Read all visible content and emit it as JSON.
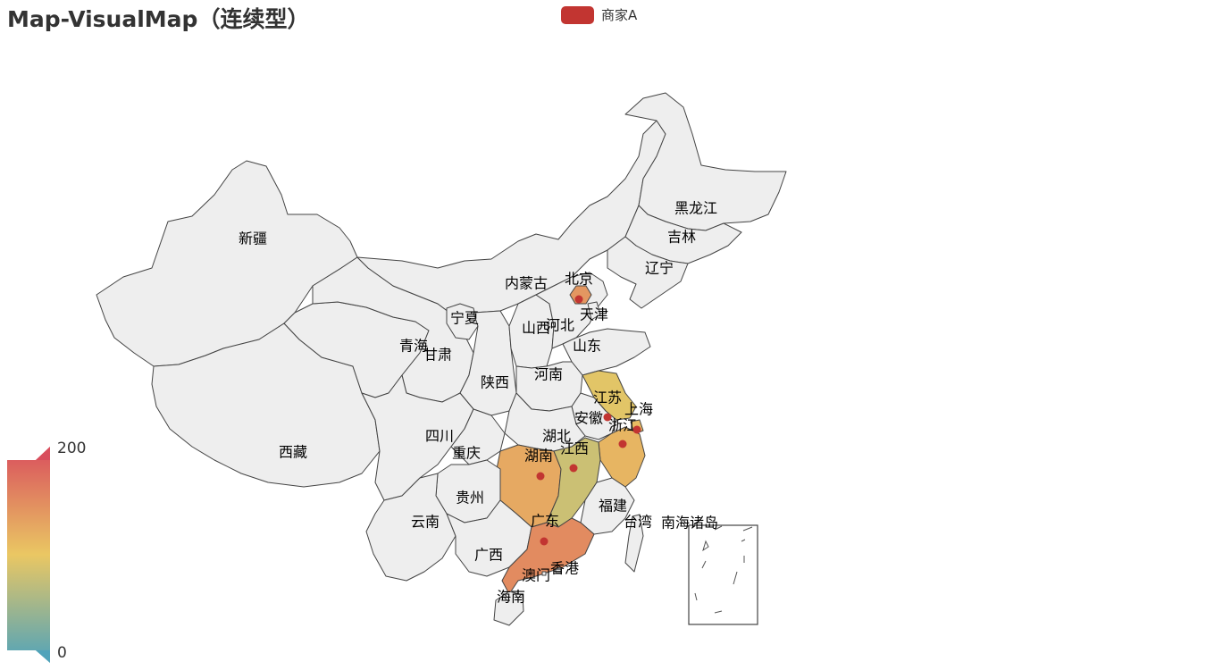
{
  "title": "Map-VisualMap（连续型）",
  "legend": {
    "label": "商家A",
    "color": "#c23531"
  },
  "visual_map": {
    "max_label": "200",
    "min_label": "0",
    "min": 0,
    "max": 200,
    "colors": [
      "#50a3ba",
      "#eac763",
      "#d94e5d"
    ]
  },
  "extra_labels": [
    "南海诸岛"
  ],
  "chart_data": {
    "type": "map",
    "map": "china",
    "series_name": "商家A",
    "visual_range": [
      0,
      200
    ],
    "regions": [
      {
        "name": "新疆"
      },
      {
        "name": "西藏"
      },
      {
        "name": "青海"
      },
      {
        "name": "甘肃"
      },
      {
        "name": "内蒙古"
      },
      {
        "name": "黑龙江"
      },
      {
        "name": "吉林"
      },
      {
        "name": "辽宁"
      },
      {
        "name": "宁夏"
      },
      {
        "name": "陕西"
      },
      {
        "name": "山西"
      },
      {
        "name": "河北"
      },
      {
        "name": "北京",
        "value": 140
      },
      {
        "name": "天津"
      },
      {
        "name": "山东"
      },
      {
        "name": "河南"
      },
      {
        "name": "四川"
      },
      {
        "name": "重庆"
      },
      {
        "name": "湖北"
      },
      {
        "name": "湖南",
        "value": 125
      },
      {
        "name": "江西",
        "value": 80
      },
      {
        "name": "安徽"
      },
      {
        "name": "江苏",
        "value": 95
      },
      {
        "name": "上海",
        "value": 110
      },
      {
        "name": "浙江",
        "value": 115
      },
      {
        "name": "福建"
      },
      {
        "name": "广东",
        "value": 150
      },
      {
        "name": "广西"
      },
      {
        "name": "贵州"
      },
      {
        "name": "云南"
      },
      {
        "name": "海南"
      },
      {
        "name": "台湾"
      },
      {
        "name": "香港"
      },
      {
        "name": "澳门"
      }
    ]
  }
}
